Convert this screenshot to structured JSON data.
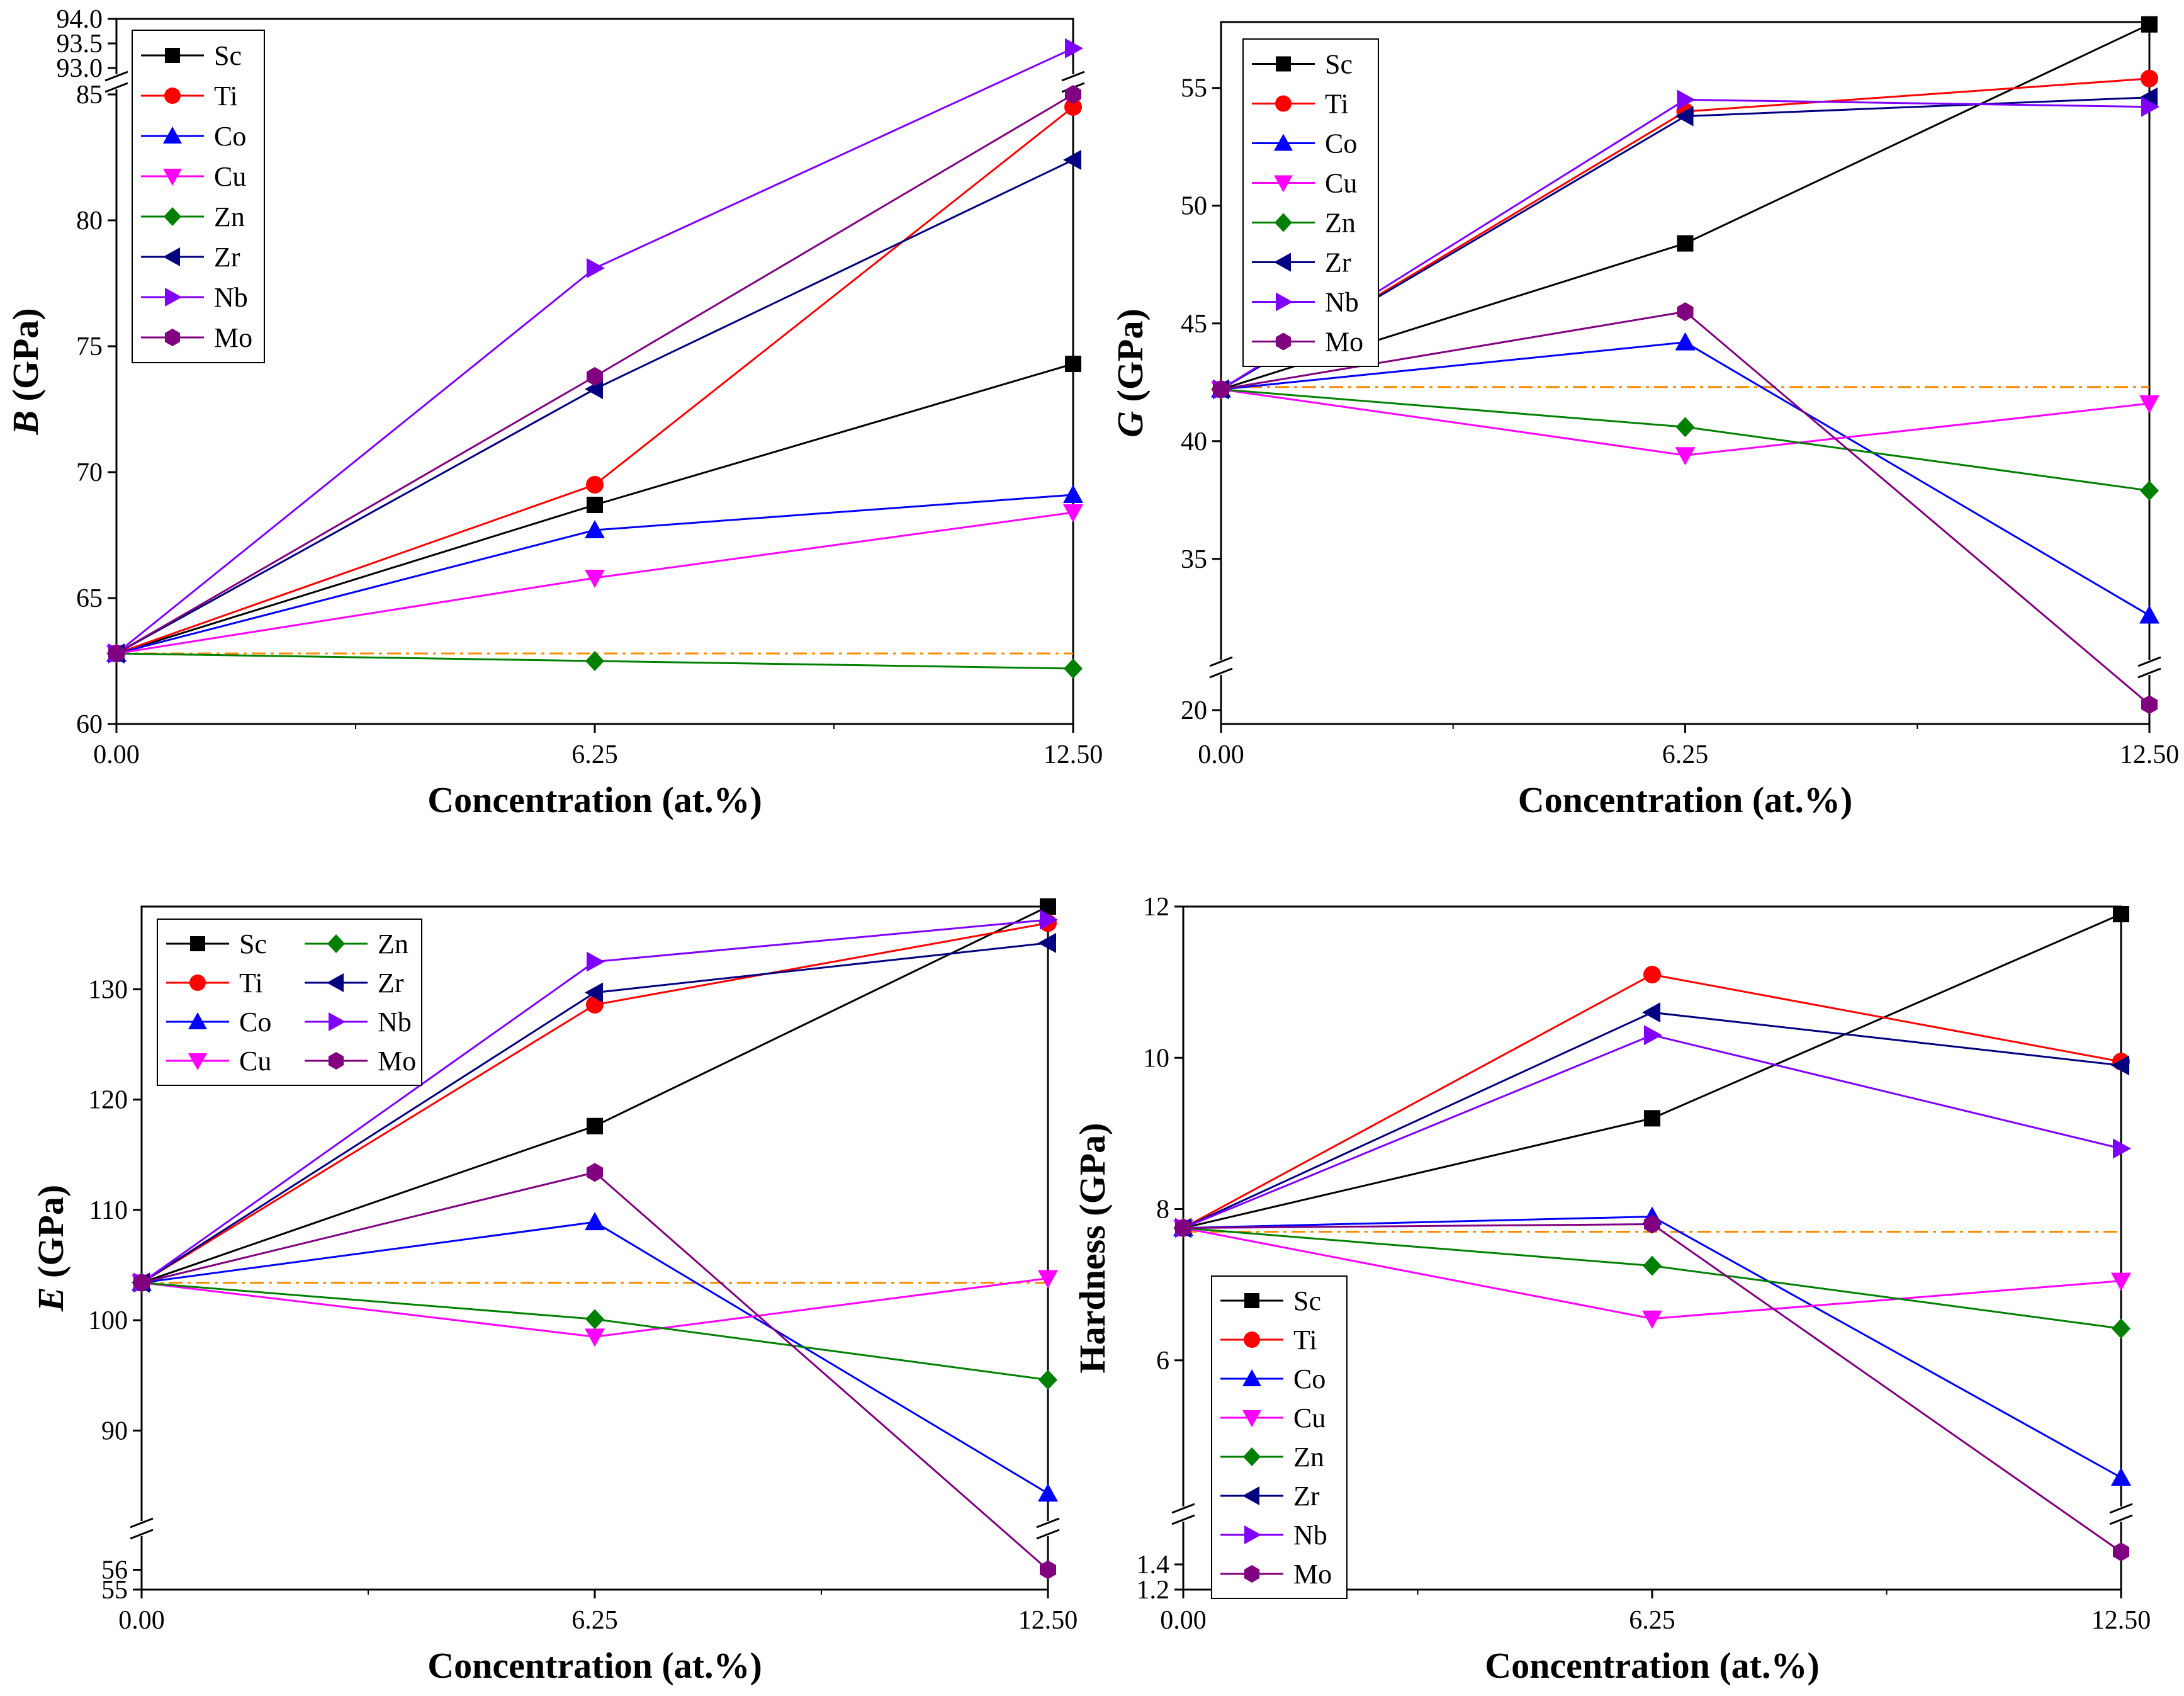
{
  "reference_line_color": "#FF8C00",
  "series_styles": {
    "Sc": {
      "color": "#000000",
      "marker": "square"
    },
    "Ti": {
      "color": "#FF0000",
      "marker": "circle"
    },
    "Co": {
      "color": "#0000FF",
      "marker": "triangle-up"
    },
    "Cu": {
      "color": "#FF00FF",
      "marker": "triangle-down"
    },
    "Zn": {
      "color": "#008000",
      "marker": "diamond"
    },
    "Zr": {
      "color": "#000080",
      "marker": "triangle-left"
    },
    "Nb": {
      "color": "#8000FF",
      "marker": "triangle-right"
    },
    "Mo": {
      "color": "#800080",
      "marker": "hexagon"
    }
  },
  "chart_data": [
    {
      "id": "bulk",
      "type": "line",
      "title": "",
      "ylabel_italic": "B",
      "ylabel_rest": " (GPa)",
      "xlabel": "Concentration (at.%)",
      "x": [
        0,
        6.25,
        12.5
      ],
      "xticks": [
        "0.00",
        "6.25",
        "12.50"
      ],
      "ylim": [
        60,
        94
      ],
      "axis_break": {
        "low": [
          60,
          85
        ],
        "high": [
          93,
          94
        ]
      },
      "yticks": [
        "60",
        "65",
        "70",
        "75",
        "80",
        "85",
        "93.0",
        "93.5",
        "94.0"
      ],
      "reference": 62.8,
      "legend_columns": 1,
      "legend_position": "top-left",
      "series": [
        {
          "name": "Sc",
          "values": [
            62.8,
            68.7,
            74.3
          ]
        },
        {
          "name": "Ti",
          "values": [
            62.8,
            69.5,
            84.5
          ]
        },
        {
          "name": "Co",
          "values": [
            62.8,
            67.7,
            69.1
          ]
        },
        {
          "name": "Cu",
          "values": [
            62.8,
            65.8,
            68.4
          ]
        },
        {
          "name": "Zn",
          "values": [
            62.8,
            62.5,
            62.2
          ]
        },
        {
          "name": "Zr",
          "values": [
            62.8,
            73.3,
            82.4
          ]
        },
        {
          "name": "Nb",
          "values": [
            62.8,
            78.1,
            93.4
          ]
        },
        {
          "name": "Mo",
          "values": [
            62.8,
            73.8,
            85.0
          ]
        }
      ]
    },
    {
      "id": "shear",
      "type": "line",
      "title": "",
      "ylabel_italic": "G",
      "ylabel_rest": " (GPa)",
      "xlabel": "Concentration (at.%)",
      "x": [
        0,
        6.25,
        12.5
      ],
      "xticks": [
        "0.00",
        "6.25",
        "12.50"
      ],
      "ylim": [
        20,
        57.8
      ],
      "axis_break": {
        "low": [
          20,
          21
        ],
        "high": [
          32,
          57.8
        ]
      },
      "yticks": [
        "20",
        "35",
        "40",
        "45",
        "50",
        "55"
      ],
      "reference": 42.3,
      "legend_columns": 1,
      "legend_position": "top-left",
      "series": [
        {
          "name": "Sc",
          "values": [
            42.2,
            48.4,
            57.7
          ]
        },
        {
          "name": "Ti",
          "values": [
            42.2,
            54.0,
            55.4
          ]
        },
        {
          "name": "Co",
          "values": [
            42.2,
            44.2,
            32.6
          ]
        },
        {
          "name": "Cu",
          "values": [
            42.2,
            39.4,
            41.6
          ]
        },
        {
          "name": "Zn",
          "values": [
            42.2,
            40.6,
            37.9
          ]
        },
        {
          "name": "Zr",
          "values": [
            42.2,
            53.8,
            54.6
          ]
        },
        {
          "name": "Nb",
          "values": [
            42.2,
            54.5,
            54.2
          ]
        },
        {
          "name": "Mo",
          "values": [
            42.2,
            45.5,
            20.2
          ]
        }
      ]
    },
    {
      "id": "young",
      "type": "line",
      "title": "",
      "ylabel_italic": "E",
      "ylabel_rest": " (GPa)",
      "xlabel": "Concentration (at.%)",
      "x": [
        0,
        6.25,
        12.5
      ],
      "xticks": [
        "0.00",
        "6.25",
        "12.50"
      ],
      "ylim": [
        55,
        137.5
      ],
      "axis_break": {
        "low": [
          55,
          57
        ],
        "high": [
          83,
          137.5
        ]
      },
      "yticks": [
        "55",
        "56",
        "90",
        "100",
        "110",
        "120",
        "130"
      ],
      "reference": 103.4,
      "legend_columns": 2,
      "legend_position": "top-left",
      "series": [
        {
          "name": "Sc",
          "values": [
            103.4,
            117.6,
            137.5
          ]
        },
        {
          "name": "Ti",
          "values": [
            103.4,
            128.6,
            136.0
          ]
        },
        {
          "name": "Co",
          "values": [
            103.4,
            108.9,
            84.3
          ]
        },
        {
          "name": "Cu",
          "values": [
            103.4,
            98.5,
            103.8
          ]
        },
        {
          "name": "Zn",
          "values": [
            103.4,
            100.1,
            94.6
          ]
        },
        {
          "name": "Zr",
          "values": [
            103.4,
            129.7,
            134.2
          ]
        },
        {
          "name": "Nb",
          "values": [
            103.4,
            132.5,
            136.3
          ]
        },
        {
          "name": "Mo",
          "values": [
            103.4,
            113.4,
            56.0
          ]
        }
      ]
    },
    {
      "id": "hardness",
      "type": "line",
      "title": "",
      "ylabel_italic": "",
      "ylabel_rest": "Hardness (GPa)",
      "xlabel": "Concentration (at.%)",
      "x": [
        0,
        6.25,
        12.5
      ],
      "xticks": [
        "0.00",
        "6.25",
        "12.50"
      ],
      "ylim": [
        1.2,
        12
      ],
      "axis_break": {
        "low": [
          1.2,
          1.6
        ],
        "high": [
          4.3,
          12
        ]
      },
      "yticks": [
        "1.2",
        "1.4",
        "6",
        "8",
        "10",
        "12"
      ],
      "reference": 7.7,
      "legend_columns": 1,
      "legend_position": "bottom-left",
      "series": [
        {
          "name": "Sc",
          "values": [
            7.75,
            9.2,
            11.9
          ]
        },
        {
          "name": "Ti",
          "values": [
            7.75,
            11.1,
            9.95
          ]
        },
        {
          "name": "Co",
          "values": [
            7.75,
            7.9,
            4.45
          ]
        },
        {
          "name": "Cu",
          "values": [
            7.75,
            6.55,
            7.05
          ]
        },
        {
          "name": "Zn",
          "values": [
            7.75,
            7.25,
            6.42
          ]
        },
        {
          "name": "Zr",
          "values": [
            7.75,
            10.6,
            9.9
          ]
        },
        {
          "name": "Nb",
          "values": [
            7.75,
            10.3,
            8.8
          ]
        },
        {
          "name": "Mo",
          "values": [
            7.75,
            7.8,
            1.5
          ]
        }
      ]
    }
  ]
}
